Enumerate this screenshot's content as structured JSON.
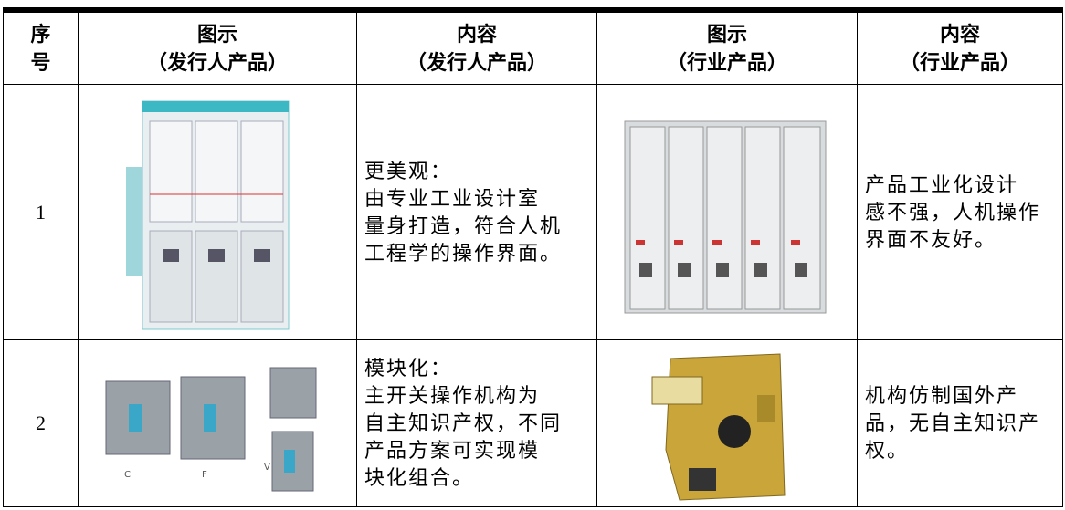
{
  "table": {
    "header": [
      [
        "序",
        "号"
      ],
      [
        "图示",
        "（发行人产品）"
      ],
      [
        "内容",
        "（发行人产品）"
      ],
      [
        "图示",
        "（行业产品）"
      ],
      [
        "内容",
        "（行业产品）"
      ]
    ],
    "rows": [
      {
        "no": "1",
        "issuer_content": [
          "更美观：",
          "由专业工业设计室",
          "量身打造，符合人机",
          "工程学的操作界面。"
        ],
        "industry_content": [
          "产品工业化设计",
          "感不强，人机操作",
          "界面不友好。"
        ]
      },
      {
        "no": "2",
        "image_labels": [
          "C",
          "F",
          "V"
        ],
        "issuer_content": [
          "模块化：",
          "主开关操作机构为",
          "自主知识产权，不同",
          "产品方案可实现模",
          "块化组合。"
        ],
        "industry_content": [
          "机构仿制国外产",
          "品，无自主知识产",
          "权。"
        ]
      }
    ]
  }
}
